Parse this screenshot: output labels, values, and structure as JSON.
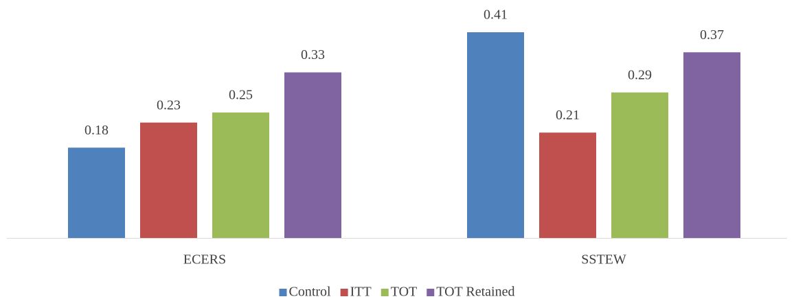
{
  "chart_data": {
    "type": "bar",
    "categories": [
      "ECERS",
      "SSTEW"
    ],
    "series": [
      {
        "name": "Control",
        "color": "#4f81bd",
        "values": [
          0.18,
          0.41
        ]
      },
      {
        "name": "ITT",
        "color": "#c0504d",
        "values": [
          0.23,
          0.21
        ]
      },
      {
        "name": "TOT",
        "color": "#9bbb59",
        "values": [
          0.25,
          0.29
        ]
      },
      {
        "name": "TOT Retained",
        "color": "#8064a2",
        "values": [
          0.33,
          0.37
        ]
      }
    ],
    "legend": "bottom"
  }
}
